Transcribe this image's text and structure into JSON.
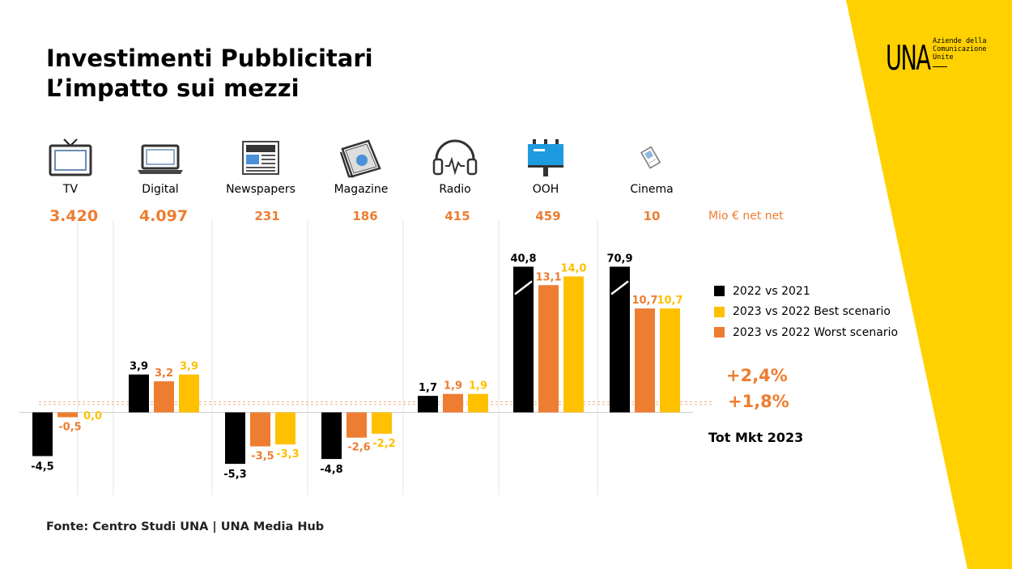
{
  "title": {
    "line1": "Investimenti Pubblicitari",
    "line2": "L’impatto sui mezzi"
  },
  "logo": {
    "mark": "UNA",
    "line1": "Aziende della",
    "line2": "Comunicazione",
    "line3": "Unite"
  },
  "colors": {
    "black": "#000000",
    "worst": "#ED7D31",
    "best": "#FFC000",
    "band": "#FFD100"
  },
  "media": [
    {
      "label": "TV",
      "spend": "3.420",
      "icon": "tv-icon"
    },
    {
      "label": "Digital",
      "spend": "4.097",
      "icon": "laptop-icon"
    },
    {
      "label": "Newspapers",
      "spend": "231",
      "icon": "newspaper-icon"
    },
    {
      "label": "Magazine",
      "spend": "186",
      "icon": "magazine-icon"
    },
    {
      "label": "Radio",
      "spend": "415",
      "icon": "headphones-icon"
    },
    {
      "label": "OOH",
      "spend": "459",
      "icon": "billboard-icon"
    },
    {
      "label": "Cinema",
      "spend": "10",
      "icon": "ticket-icon"
    }
  ],
  "spend_unit": "Mio € net net",
  "totals": {
    "best": "+2,4%",
    "worst": "+1,8%",
    "label": "Tot Mkt 2023"
  },
  "source": "Fonte: Centro Studi UNA | UNA Media Hub",
  "chart_data": {
    "type": "bar",
    "categories": [
      "TV",
      "Digital",
      "Newspapers",
      "Magazine",
      "Radio",
      "OOH",
      "Cinema"
    ],
    "series": [
      {
        "name": "2022 vs 2021",
        "values": [
          -4.5,
          3.9,
          -5.3,
          -4.8,
          1.7,
          40.8,
          70.9
        ],
        "labels": [
          "-4,5",
          "3,9",
          "-5,3",
          "-4,8",
          "1,7",
          "40,8",
          "70,9"
        ],
        "color": "#000000"
      },
      {
        "name": "2023 vs 2022 Worst scenario",
        "values": [
          -0.5,
          3.2,
          -3.5,
          -2.6,
          1.9,
          13.1,
          10.7
        ],
        "labels": [
          "-0,5",
          "3,2",
          "-3,5",
          "-2,6",
          "1,9",
          "13,1",
          "10,7"
        ],
        "color": "#ED7D31"
      },
      {
        "name": "2023 vs 2022 Best scenario",
        "values": [
          0.0,
          3.9,
          -3.3,
          -2.2,
          1.9,
          14.0,
          10.7
        ],
        "labels": [
          "0,0",
          "3,9",
          "-3,3",
          "-2,2",
          "1,9",
          "14,0",
          "10,7"
        ],
        "color": "#FFC000"
      }
    ],
    "legend": [
      "2022 vs 2021",
      "2023 vs 2022 Best scenario",
      "2023 vs 2022 Worst scenario"
    ],
    "reference_lines": [
      2.4,
      1.8
    ],
    "broken_axis_series": "2022 vs 2021",
    "legend_position": "right",
    "grid": "vertical separators"
  }
}
